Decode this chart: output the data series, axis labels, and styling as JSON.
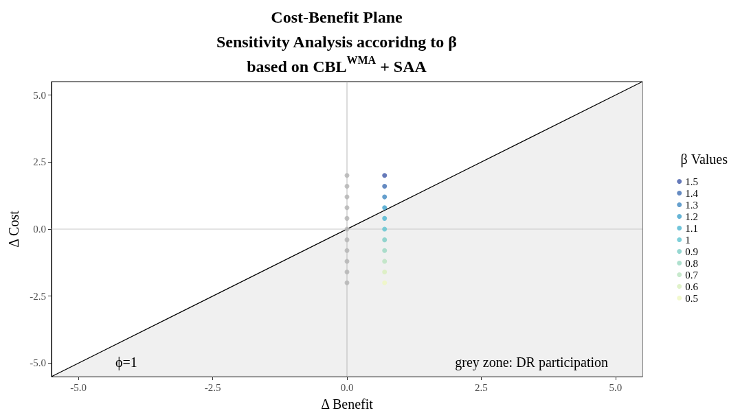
{
  "chart_data": {
    "type": "scatter",
    "title": "Cost-Benefit Plane\nSensitivity Analysis accoridng to β\nbased on CBL$^{WMA}$ + SAA",
    "xlabel": "Δ Benefit",
    "ylabel": "Δ Cost",
    "legend_title": "β Values",
    "xlim": [
      -5.5,
      5.5
    ],
    "ylim": [
      -5.5,
      5.5
    ],
    "xticks": [
      {
        "value": -5,
        "label": "-5.0"
      },
      -2.5,
      {
        "value": 0,
        "label": "0.0"
      },
      2.5,
      {
        "value": 5,
        "label": "5.0"
      }
    ],
    "yticks": [
      {
        "value": -5,
        "label": "-5.0"
      },
      -2.5,
      {
        "value": 0,
        "label": "0.0"
      },
      2.5,
      {
        "value": 5,
        "label": "5.0"
      }
    ],
    "grid": false,
    "legend": "right",
    "marker": "circle",
    "ref_lines": [
      {
        "axis": "x",
        "value": 0,
        "color": "#b8b8b8"
      },
      {
        "axis": "y",
        "value": 0,
        "color": "#c8c8c8"
      }
    ],
    "annotations": [
      "ϕ=1",
      "grey zone: DR participation"
    ],
    "series": [
      {
        "type": "area",
        "marker": "none",
        "color": "#000000",
        "x": [
          -5.5,
          5.5
        ],
        "values": [
          -5.5,
          5.5
        ]
      },
      {
        "color": "#b3b3b3",
        "x": [
          0,
          0,
          0,
          0,
          0,
          0,
          0,
          0,
          0,
          0,
          0
        ],
        "values": [
          2.0,
          1.6,
          1.2,
          0.8,
          0.4,
          0,
          -0.4,
          -0.8,
          -1.2,
          -1.6,
          -2.0
        ]
      },
      {
        "name": "1.5",
        "color": "#3f58a7",
        "x": [
          0.7
        ],
        "values": [
          2.0
        ]
      },
      {
        "name": "1.4",
        "color": "#3f6db1",
        "x": [
          0.7
        ],
        "values": [
          1.6
        ]
      },
      {
        "name": "1.3",
        "color": "#3e87c0",
        "x": [
          0.7
        ],
        "values": [
          1.2
        ]
      },
      {
        "name": "1.2",
        "color": "#3ea1cc",
        "x": [
          0.7
        ],
        "values": [
          0.8
        ]
      },
      {
        "name": "1.1",
        "color": "#4bb5d1",
        "x": [
          0.7
        ],
        "values": [
          0.4
        ]
      },
      {
        "name": "1",
        "color": "#5ec3cf",
        "x": [
          0.7
        ],
        "values": [
          0
        ]
      },
      {
        "name": "0.9",
        "color": "#7ccdc6",
        "x": [
          0.7
        ],
        "values": [
          -0.4
        ]
      },
      {
        "name": "0.8",
        "color": "#9ad8c2",
        "x": [
          0.7
        ],
        "values": [
          -0.8
        ]
      },
      {
        "name": "0.7",
        "color": "#b9e3bf",
        "x": [
          0.7
        ],
        "values": [
          -1.2
        ]
      },
      {
        "name": "0.6",
        "color": "#d8efbc",
        "x": [
          0.7
        ],
        "values": [
          -1.6
        ]
      },
      {
        "name": "0.5",
        "color": "#eff8c0",
        "x": [
          0.7
        ],
        "values": [
          -2.0
        ]
      }
    ]
  }
}
